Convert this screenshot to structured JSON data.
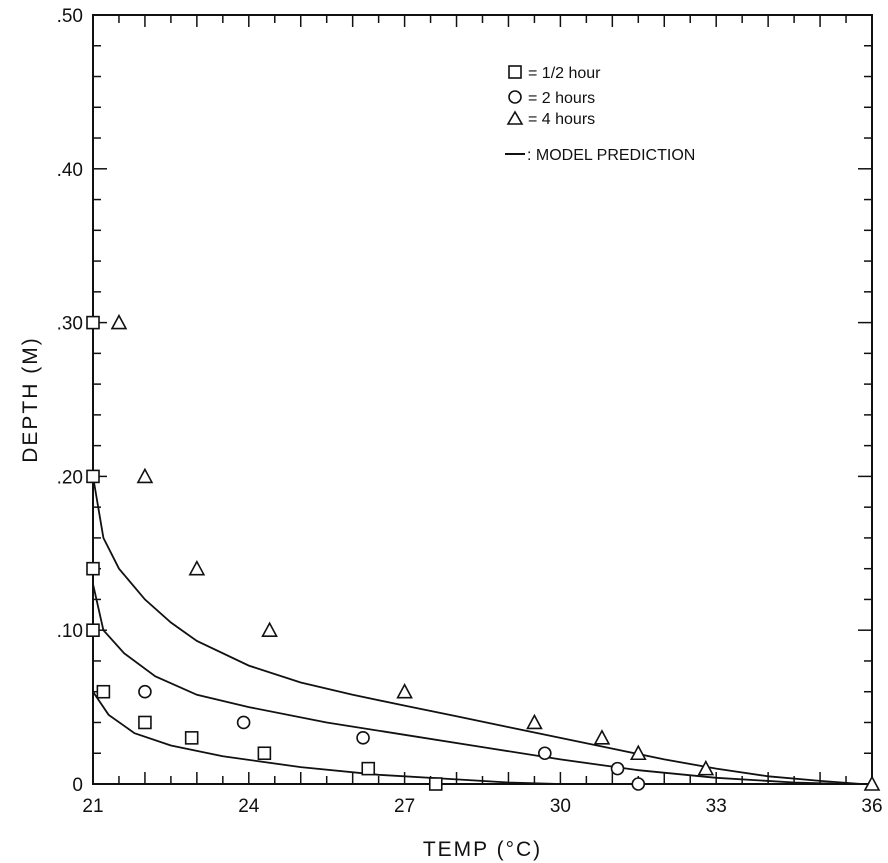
{
  "chart_data": {
    "type": "scatter",
    "title": "",
    "xlabel": "TEMP (°C)",
    "ylabel": "DEPTH (M)",
    "xlim": [
      21,
      36
    ],
    "ylim": [
      0,
      0.5
    ],
    "x_ticks": [
      21,
      24,
      27,
      30,
      33,
      36
    ],
    "x_tick_labels": [
      "21",
      "24",
      "27",
      "30",
      "33",
      "36"
    ],
    "y_ticks": [
      0,
      0.1,
      0.2,
      0.3,
      0.4,
      0.5
    ],
    "y_tick_labels": [
      "0",
      ".10",
      ".20",
      ".30",
      ".40",
      ".50"
    ],
    "legend_position": "top-right",
    "legend": [
      {
        "marker": "square",
        "symbol": "□",
        "label": "= 1/2 hour"
      },
      {
        "marker": "circle",
        "symbol": "○",
        "label": "= 2 hours"
      },
      {
        "marker": "triangle",
        "symbol": "△",
        "label": "= 4 hours"
      },
      {
        "marker": "line",
        "symbol": "—",
        "label": ": MODEL PREDICTION"
      }
    ],
    "series": [
      {
        "name": "1/2 hour",
        "marker": "square",
        "points": [
          [
            21.0,
            0.3
          ],
          [
            21.0,
            0.2
          ],
          [
            21.0,
            0.14
          ],
          [
            21.0,
            0.1
          ],
          [
            21.2,
            0.06
          ],
          [
            22.0,
            0.04
          ],
          [
            22.9,
            0.03
          ],
          [
            24.3,
            0.02
          ],
          [
            26.3,
            0.01
          ],
          [
            27.6,
            0.0
          ]
        ]
      },
      {
        "name": "2 hours",
        "marker": "circle",
        "points": [
          [
            22.0,
            0.06
          ],
          [
            23.9,
            0.04
          ],
          [
            26.2,
            0.03
          ],
          [
            29.7,
            0.02
          ],
          [
            31.1,
            0.01
          ],
          [
            31.5,
            0.0
          ]
        ]
      },
      {
        "name": "4 hours",
        "marker": "triangle",
        "points": [
          [
            21.5,
            0.3
          ],
          [
            22.0,
            0.2
          ],
          [
            23.0,
            0.14
          ],
          [
            24.4,
            0.1
          ],
          [
            27.0,
            0.06
          ],
          [
            29.5,
            0.04
          ],
          [
            30.8,
            0.03
          ],
          [
            31.5,
            0.02
          ],
          [
            32.8,
            0.01
          ],
          [
            36.0,
            0.0
          ]
        ]
      }
    ],
    "model_curves": [
      {
        "name": "model 1/2 hour",
        "points": [
          [
            21.0,
            0.06
          ],
          [
            21.3,
            0.045
          ],
          [
            21.8,
            0.033
          ],
          [
            22.5,
            0.025
          ],
          [
            23.5,
            0.018
          ],
          [
            25.0,
            0.011
          ],
          [
            26.5,
            0.006
          ],
          [
            28.0,
            0.003
          ],
          [
            29.0,
            0.001
          ],
          [
            30.0,
            0.0
          ]
        ]
      },
      {
        "name": "model 2 hours",
        "points": [
          [
            21.0,
            0.13
          ],
          [
            21.2,
            0.1
          ],
          [
            21.6,
            0.085
          ],
          [
            22.2,
            0.07
          ],
          [
            23.0,
            0.058
          ],
          [
            24.0,
            0.05
          ],
          [
            25.5,
            0.04
          ],
          [
            27.0,
            0.032
          ],
          [
            28.5,
            0.024
          ],
          [
            30.0,
            0.016
          ],
          [
            31.5,
            0.009
          ],
          [
            33.0,
            0.004
          ],
          [
            34.5,
            0.001
          ],
          [
            35.5,
            0.0
          ]
        ]
      },
      {
        "name": "model 4 hours",
        "points": [
          [
            21.0,
            0.2
          ],
          [
            21.2,
            0.16
          ],
          [
            21.5,
            0.14
          ],
          [
            22.0,
            0.12
          ],
          [
            22.5,
            0.105
          ],
          [
            23.0,
            0.093
          ],
          [
            24.0,
            0.077
          ],
          [
            25.0,
            0.066
          ],
          [
            26.0,
            0.058
          ],
          [
            27.0,
            0.051
          ],
          [
            28.0,
            0.044
          ],
          [
            29.0,
            0.037
          ],
          [
            30.0,
            0.03
          ],
          [
            31.0,
            0.023
          ],
          [
            32.0,
            0.016
          ],
          [
            33.0,
            0.01
          ],
          [
            34.0,
            0.005
          ],
          [
            35.0,
            0.002
          ],
          [
            35.8,
            0.0
          ]
        ]
      }
    ]
  }
}
